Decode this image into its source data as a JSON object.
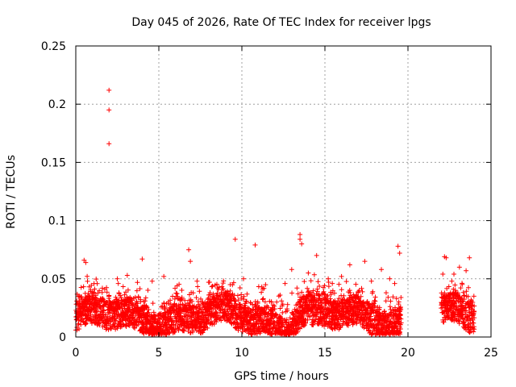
{
  "chart_data": {
    "type": "scatter",
    "title": "Day 045 of 2026, Rate Of TEC Index for receiver lpgs",
    "xlabel": "GPS time / hours",
    "ylabel": "ROTI / TECUs",
    "xlim": [
      0,
      25
    ],
    "ylim": [
      0,
      0.25
    ],
    "xticks": [
      0,
      5,
      10,
      15,
      20,
      25
    ],
    "yticks": [
      0,
      0.05,
      0.1,
      0.15,
      0.2,
      0.25
    ],
    "xtick_labels": [
      "0",
      "5",
      "10",
      "15",
      "20",
      "25"
    ],
    "ytick_labels": [
      "0",
      "0.05",
      "0.1",
      "0.15",
      "0.2",
      "0.25"
    ],
    "grid": true,
    "marker": "+",
    "color": "#ff0000",
    "data_coverage_hours": [
      [
        0,
        19.6
      ],
      [
        22.0,
        24.0
      ]
    ],
    "series": [
      {
        "points": [
          [
            2.0,
            0.212
          ],
          [
            2.0,
            0.195
          ],
          [
            2.0,
            0.166
          ],
          [
            9.6,
            0.084
          ],
          [
            10.8,
            0.079
          ],
          [
            13.5,
            0.088
          ],
          [
            13.5,
            0.084
          ],
          [
            13.6,
            0.08
          ],
          [
            19.4,
            0.078
          ],
          [
            19.5,
            0.072
          ],
          [
            6.8,
            0.075
          ],
          [
            6.9,
            0.065
          ],
          [
            0.5,
            0.066
          ],
          [
            0.6,
            0.064
          ],
          [
            4.0,
            0.067
          ],
          [
            3.1,
            0.053
          ],
          [
            14.5,
            0.07
          ],
          [
            13.0,
            0.058
          ],
          [
            16.5,
            0.062
          ],
          [
            17.4,
            0.065
          ],
          [
            18.4,
            0.058
          ],
          [
            22.2,
            0.069
          ],
          [
            22.3,
            0.068
          ],
          [
            23.7,
            0.068
          ],
          [
            23.1,
            0.06
          ],
          [
            23.5,
            0.057
          ],
          [
            22.1,
            0.054
          ],
          [
            1.1,
            0.046
          ],
          [
            2.5,
            0.05
          ],
          [
            5.3,
            0.052
          ],
          [
            8.0,
            0.047
          ],
          [
            9.3,
            0.045
          ],
          [
            11.2,
            0.043
          ],
          [
            12.3,
            0.036
          ],
          [
            15.2,
            0.05
          ],
          [
            16.0,
            0.052
          ],
          [
            17.8,
            0.048
          ],
          [
            18.9,
            0.05
          ],
          [
            19.2,
            0.046
          ],
          [
            12.6,
            0.046
          ],
          [
            14.0,
            0.055
          ],
          [
            6.1,
            0.044
          ],
          [
            7.3,
            0.048
          ],
          [
            10.1,
            0.05
          ],
          [
            4.6,
            0.048
          ],
          [
            1.6,
            0.042
          ]
        ]
      }
    ]
  }
}
